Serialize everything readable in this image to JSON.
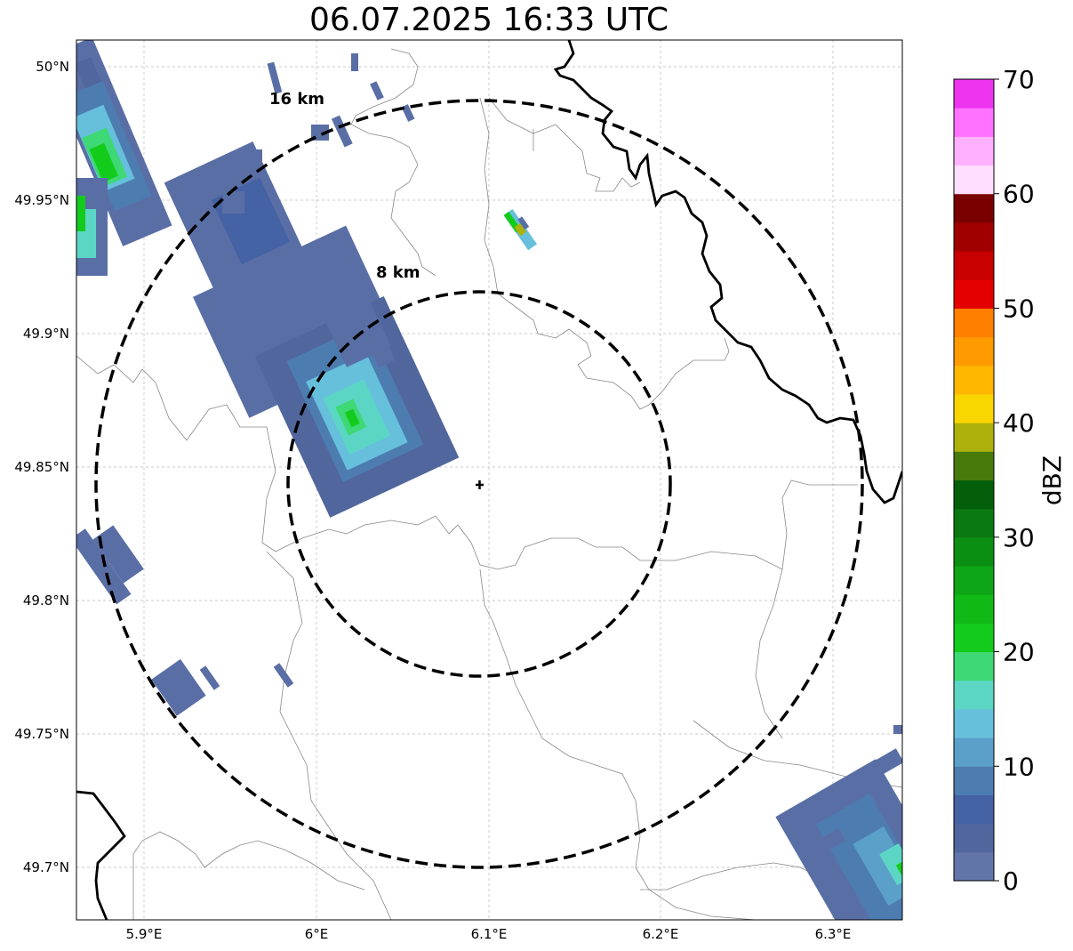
{
  "title": "06.07.2025 16:33 UTC",
  "map": {
    "lon_ticks": [
      "5.9°E",
      "6°E",
      "6.1°E",
      "6.2°E",
      "6.3°E"
    ],
    "lat_ticks": [
      "50°N",
      "49.95°N",
      "49.9°N",
      "49.85°N",
      "49.8°N",
      "49.75°N",
      "49.7°N"
    ],
    "rings": [
      {
        "label": "16 km",
        "radius_km": 16
      },
      {
        "label": "8 km",
        "radius_km": 8
      }
    ],
    "center_marker": "radar-site-cross-icon"
  },
  "colorbar": {
    "label": "dBZ",
    "ticks": [
      "0",
      "10",
      "20",
      "30",
      "40",
      "50",
      "60",
      "70"
    ],
    "colors": [
      "#6175a8",
      "#51669d",
      "#4562a4",
      "#4d7cb0",
      "#5aa0c8",
      "#66c0dc",
      "#5cd6c4",
      "#3ed874",
      "#13cb1b",
      "#11b917",
      "#0ea616",
      "#0b8f12",
      "#0b7912",
      "#045f0b",
      "#467a0b",
      "#aeb10b",
      "#fad600",
      "#ffb700",
      "#ff9b00",
      "#ff7f00",
      "#e50000",
      "#c80000",
      "#a00000",
      "#7a0000",
      "#ffddff",
      "#ffb0ff",
      "#ff72ff",
      "#ef34ef"
    ]
  },
  "colors": {
    "ring": "#000000",
    "grid": "#b0b0b0",
    "border_thin": "#888888",
    "border_thick": "#000000"
  }
}
